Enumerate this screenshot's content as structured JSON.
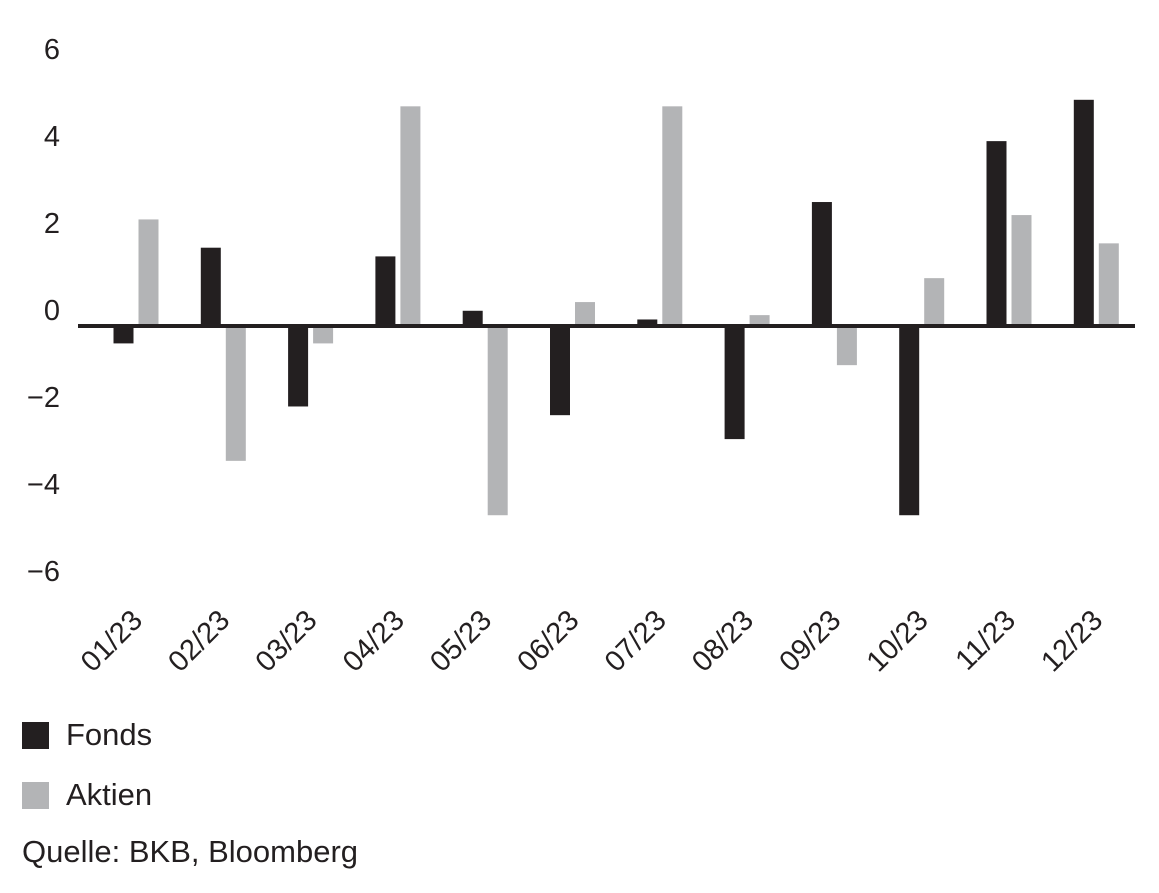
{
  "chart_data": {
    "type": "bar",
    "categories": [
      "01/23",
      "02/23",
      "03/23",
      "04/23",
      "05/23",
      "06/23",
      "07/23",
      "08/23",
      "09/23",
      "10/23",
      "11/23",
      "12/23"
    ],
    "series": [
      {
        "name": "Fonds",
        "color": "#231f20",
        "values": [
          -0.4,
          1.8,
          -1.85,
          1.6,
          0.35,
          -2.05,
          0.15,
          -2.6,
          2.85,
          -4.35,
          4.25,
          5.2
        ]
      },
      {
        "name": "Aktien",
        "color": "#b3b4b6",
        "values": [
          2.45,
          -3.1,
          -0.4,
          5.05,
          -4.35,
          0.55,
          5.05,
          0.25,
          -0.9,
          1.1,
          2.55,
          1.9
        ]
      }
    ],
    "yticks": [
      6,
      4,
      2,
      0,
      -2,
      -4,
      -6
    ],
    "ytick_labels": [
      "6",
      "4",
      "2",
      "0",
      "−2",
      "−4",
      "−6"
    ],
    "ylim": [
      -6,
      6
    ],
    "grid": false,
    "legend_position": "bottom-left"
  },
  "legend": [
    {
      "label": "Fonds",
      "color": "#231f20"
    },
    {
      "label": "Aktien",
      "color": "#b3b4b6"
    }
  ],
  "source": "Quelle: BKB, Bloomberg"
}
